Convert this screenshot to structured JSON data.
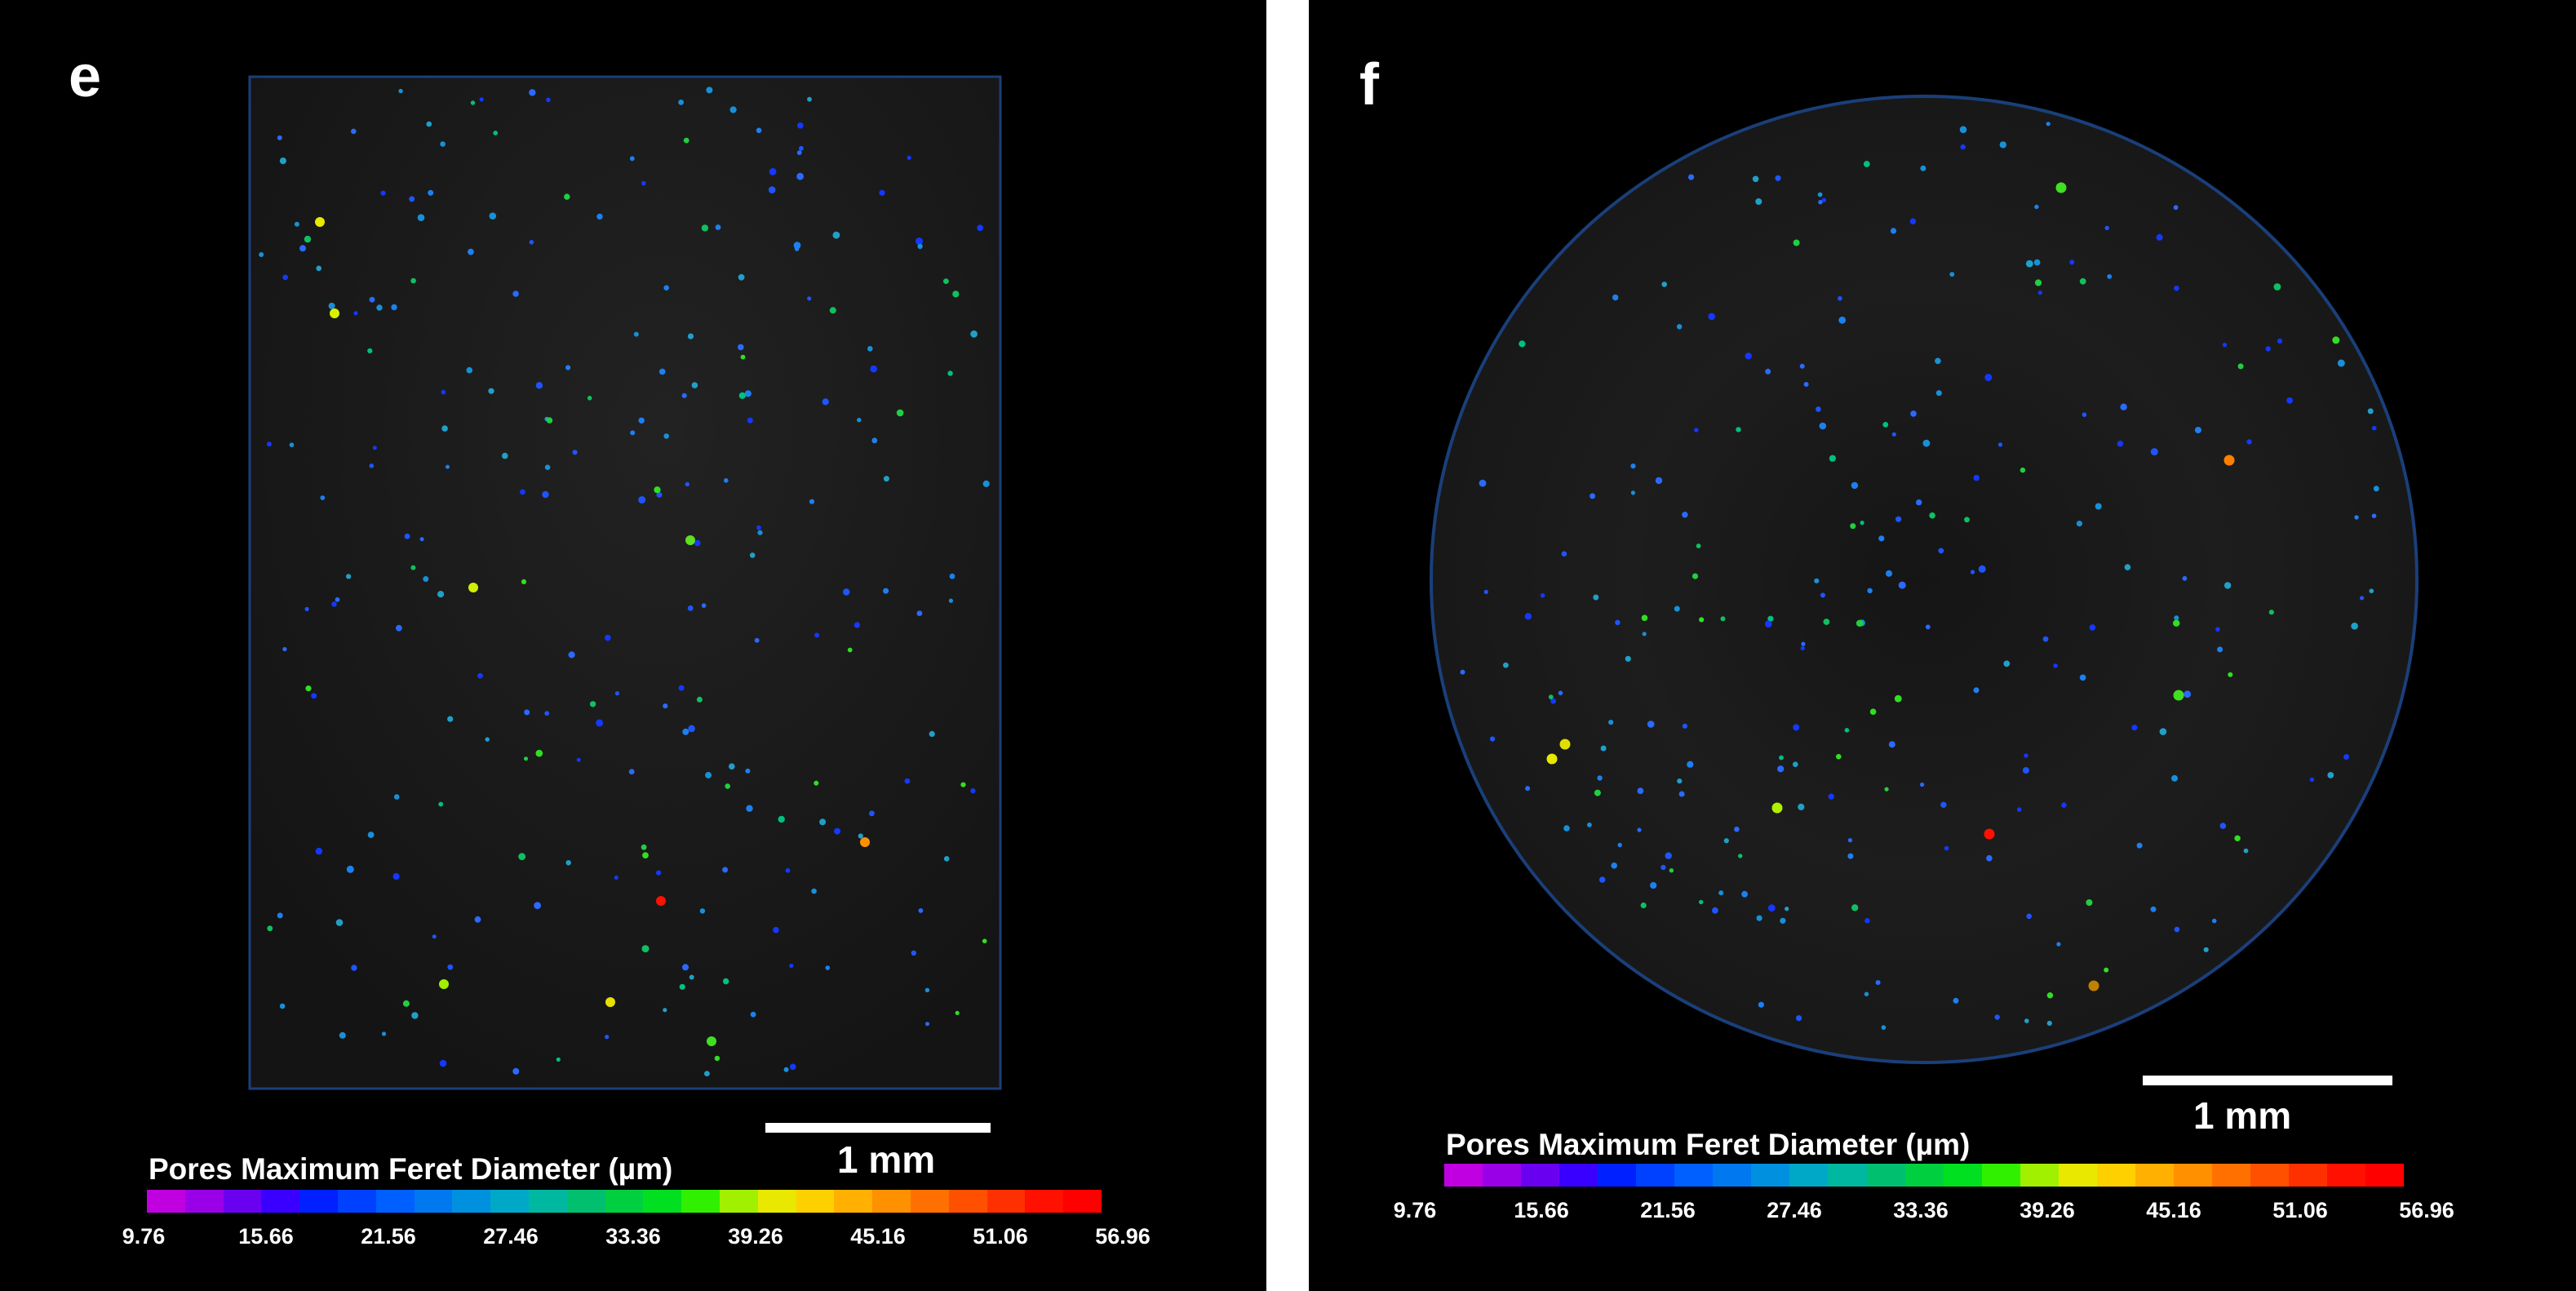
{
  "panels": [
    {
      "id": "e",
      "letter": "e",
      "shape": "rectangle",
      "scale_bar_label": "1 mm",
      "colorbar_title": "Pores Maximum Feret Diameter (µm)",
      "colorbar_ticks": [
        "9.76",
        "15.66",
        "21.56",
        "27.46",
        "33.36",
        "39.26",
        "45.16",
        "51.06",
        "56.96"
      ]
    },
    {
      "id": "f",
      "letter": "f",
      "shape": "circle",
      "scale_bar_label": "1 mm",
      "colorbar_title": "Pores Maximum Feret Diameter (µm)",
      "colorbar_ticks": [
        "9.76",
        "15.66",
        "21.56",
        "27.46",
        "33.36",
        "39.26",
        "45.16",
        "51.06",
        "56.96"
      ]
    }
  ],
  "colors": {
    "background": "#000000",
    "outline": "#1a3f7a",
    "colormap": [
      "#c000e0",
      "#9a00e8",
      "#6a00f0",
      "#3a00ff",
      "#0020ff",
      "#0040ff",
      "#0060ff",
      "#0078f0",
      "#0090e0",
      "#00a8c8",
      "#00b8a0",
      "#00c070",
      "#00d040",
      "#00e020",
      "#30f000",
      "#a0f000",
      "#e8e800",
      "#ffd000",
      "#ffb000",
      "#ff9000",
      "#ff7000",
      "#ff5000",
      "#ff3000",
      "#ff1000",
      "#ff0000"
    ]
  }
}
